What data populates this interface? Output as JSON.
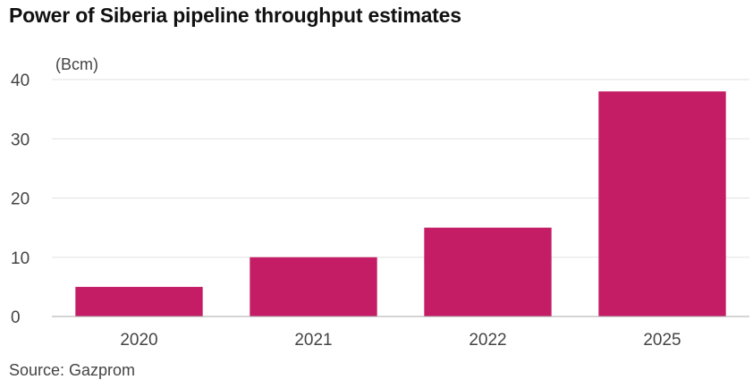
{
  "title": "Power of Siberia pipeline throughput estimates",
  "source": "Source: Gazprom",
  "colors": {
    "bar": "#c41c65",
    "grid": "#e2e2e2",
    "baseline": "#aaaaaa",
    "text": "#444444",
    "title": "#111111"
  },
  "chart_data": {
    "type": "bar",
    "title": "Power of Siberia pipeline throughput estimates",
    "ylabel": "(Bcm)",
    "xlabel": "",
    "categories": [
      "2020",
      "2021",
      "2022",
      "2025"
    ],
    "values": [
      5,
      10,
      15,
      38
    ],
    "ylim": [
      0,
      40
    ],
    "yticks": [
      0,
      10,
      20,
      30,
      40
    ],
    "grid": true,
    "legend": "none"
  }
}
